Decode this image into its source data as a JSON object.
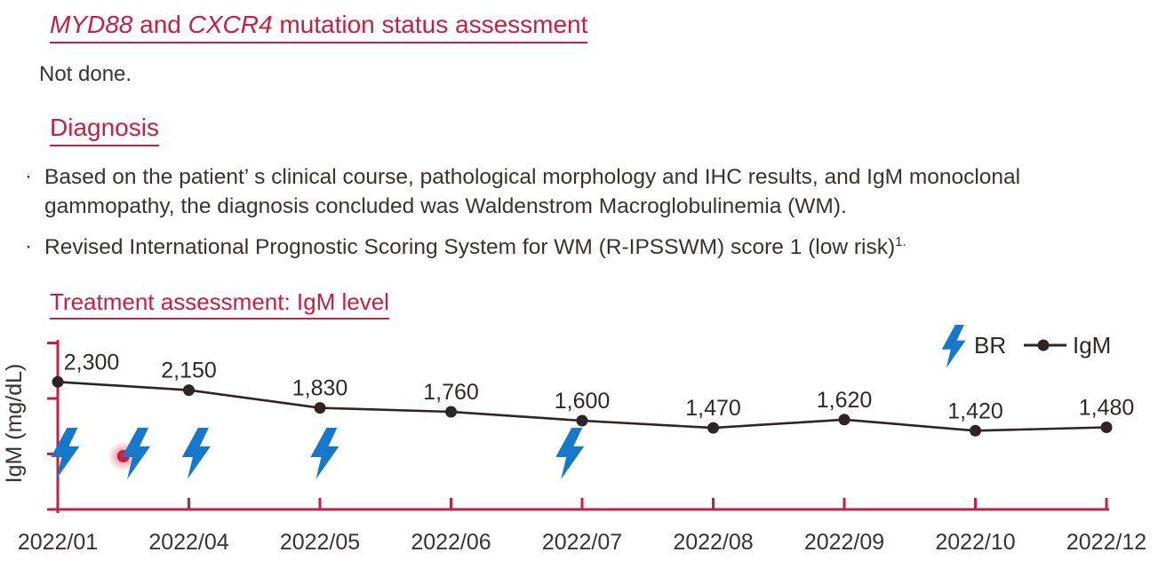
{
  "colors": {
    "accent_crimson": "#c32045",
    "bolt_blue": "#1678ca",
    "line_dark": "#2e2423",
    "text_dark": "#3a3230",
    "label_dark": "#2f2827",
    "pointer_red": "#cb1f42"
  },
  "sections": {
    "mutation": {
      "gene1": "MYD88",
      "connector": " and ",
      "gene2": "CXCR4",
      "rest": " mutation status assessment",
      "body": "Not done."
    },
    "diagnosis": {
      "heading": "Diagnosis",
      "bullet_char": "·",
      "bullets": [
        {
          "text": "Based on the patient’ s clinical course, pathological morphology and IHC results, and IgM monoclonal gammopathy, the diagnosis concluded was Waldenstrom Macroglobulinemia (WM).",
          "superscript": ""
        },
        {
          "text": "Revised International Prognostic Scoring System for WM (R-IPSSWM) score 1 (low risk)",
          "superscript": "1."
        }
      ]
    },
    "treatment": {
      "heading": "Treatment assessment: IgM level"
    }
  },
  "chart_data": {
    "type": "line",
    "title": "Treatment assessment: IgM level",
    "ylabel": "IgM (mg/dL)",
    "xlabel": "",
    "categories": [
      "2022/01",
      "2022/04",
      "2022/05",
      "2022/06",
      "2022/07",
      "2022/08",
      "2022/09",
      "2022/10",
      "2022/12"
    ],
    "series": [
      {
        "name": "IgM",
        "values": [
          2300,
          2150,
          1830,
          1760,
          1600,
          1470,
          1620,
          1420,
          1480
        ]
      }
    ],
    "point_labels": [
      "2,300",
      "2,150",
      "1,830",
      "1,760",
      "1,600",
      "1,470",
      "1,620",
      "1,420",
      "1,480"
    ],
    "ylim": [
      0,
      3050
    ],
    "yticks": [
      1000,
      2000,
      3000
    ],
    "grid": false,
    "legend_position": "top-right",
    "legend": [
      {
        "icon": "lightning-bolt-icon",
        "label": "BR"
      },
      {
        "icon": "line-marker-icon",
        "label": "IgM"
      }
    ],
    "treatments": {
      "label": "BR",
      "positions": [
        0.05,
        0.59,
        1.05,
        2.03,
        3.9
      ]
    },
    "pointer": {
      "position": 0.5
    }
  }
}
